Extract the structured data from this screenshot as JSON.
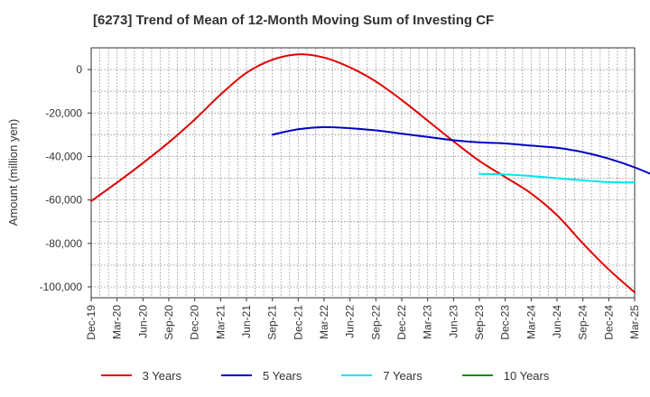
{
  "chart_data": {
    "type": "line",
    "title": "[6273]  Trend of Mean of 12-Month Moving Sum of Investing CF",
    "xlabel": "",
    "ylabel": "Amount (million yen)",
    "x_ticks": [
      "Dec-19",
      "Mar-20",
      "Jun-20",
      "Sep-20",
      "Dec-20",
      "Mar-21",
      "Jun-21",
      "Sep-21",
      "Dec-21",
      "Mar-22",
      "Jun-22",
      "Sep-22",
      "Dec-22",
      "Mar-23",
      "Jun-23",
      "Sep-23",
      "Dec-23",
      "Mar-24",
      "Jun-24",
      "Sep-24",
      "Dec-24",
      "Mar-25"
    ],
    "y_ticks": [
      0,
      -20000,
      -40000,
      -60000,
      -80000,
      -100000
    ],
    "y_tick_labels": [
      "0",
      "-20,000",
      "-40,000",
      "-60,000",
      "-80,000",
      "-100,000"
    ],
    "ylim": [
      -105000,
      10000
    ],
    "grid": true,
    "series": [
      {
        "name": "3 Years",
        "color": "#e00000",
        "points": [
          [
            0,
            -60500
          ],
          [
            1,
            -52000
          ],
          [
            2,
            -43000
          ],
          [
            3,
            -33500
          ],
          [
            4,
            -23000
          ],
          [
            5,
            -11500
          ],
          [
            6,
            -1500
          ],
          [
            7,
            4500
          ],
          [
            8,
            7000
          ],
          [
            9,
            5500
          ],
          [
            10,
            1000
          ],
          [
            11,
            -5500
          ],
          [
            12,
            -14000
          ],
          [
            13,
            -23500
          ],
          [
            14,
            -33000
          ],
          [
            15,
            -42000
          ],
          [
            16,
            -49500
          ],
          [
            17,
            -57000
          ],
          [
            18,
            -67000
          ],
          [
            19,
            -80000
          ],
          [
            20,
            -92000
          ],
          [
            21,
            -102500
          ]
        ]
      },
      {
        "name": "5 Years",
        "color": "#0000c8",
        "points": [
          [
            7,
            -30000
          ],
          [
            8,
            -27500
          ],
          [
            9,
            -26500
          ],
          [
            10,
            -27000
          ],
          [
            11,
            -28000
          ],
          [
            12,
            -29500
          ],
          [
            13,
            -31000
          ],
          [
            14,
            -32500
          ],
          [
            15,
            -33500
          ],
          [
            16,
            -34000
          ],
          [
            17,
            -35000
          ],
          [
            18,
            -36000
          ],
          [
            19,
            -38000
          ],
          [
            20,
            -41000
          ],
          [
            21,
            -45000
          ],
          [
            22,
            -50000
          ]
        ]
      },
      {
        "name": "7 Years",
        "color": "#00e5ee",
        "points": [
          [
            15,
            -48000
          ],
          [
            16,
            -48300
          ],
          [
            17,
            -49000
          ],
          [
            18,
            -50000
          ],
          [
            19,
            -51000
          ],
          [
            20,
            -51800
          ],
          [
            21,
            -52000
          ]
        ]
      },
      {
        "name": "10 Years",
        "color": "#1a8a1a",
        "points": []
      }
    ]
  }
}
